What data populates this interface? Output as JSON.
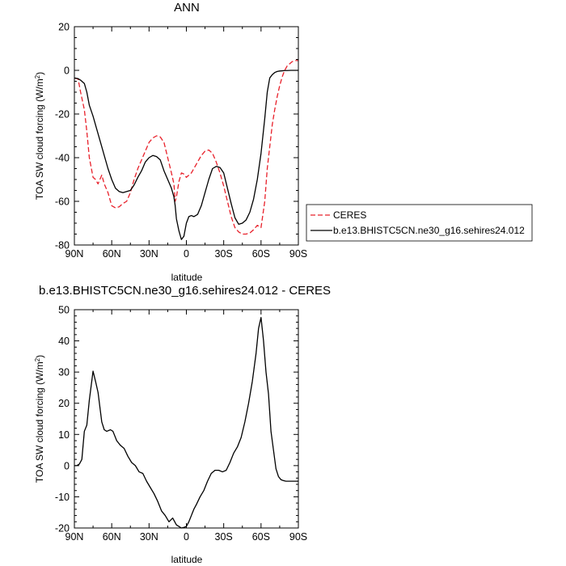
{
  "chart_data": [
    {
      "type": "line",
      "title": "ANN",
      "xlabel": "latitude",
      "ylabel": "TOA SW cloud forcing (W/m²)",
      "ylabel_main": "TOA SW cloud forcing (W/m",
      "ylabel_sup": "2",
      "ylabel_end": ")",
      "xlim": [
        90,
        -90
      ],
      "ylim": [
        -80,
        20
      ],
      "xticks": [
        90,
        60,
        30,
        0,
        -30,
        -60,
        -90
      ],
      "xtick_labels": [
        "90N",
        "60N",
        "30N",
        "0",
        "30S",
        "60S",
        "90S"
      ],
      "yticks": [
        -80,
        -60,
        -40,
        -20,
        0,
        20
      ],
      "ytick_labels": [
        "-80",
        "-60",
        "-40",
        "-20",
        "0",
        "20"
      ],
      "grid": false,
      "legend_position": "right",
      "series": [
        {
          "name": "CERES",
          "color": "#e8202a",
          "dash": "dashed",
          "x": [
            90,
            87,
            85,
            82,
            80,
            78,
            75,
            73,
            71,
            68,
            66,
            63,
            60,
            57,
            54,
            51,
            48,
            45,
            42,
            39,
            36,
            33,
            30,
            27,
            24,
            21,
            18,
            15,
            12,
            10,
            9,
            8,
            6,
            4,
            2,
            0,
            -2,
            -4,
            -6,
            -9,
            -12,
            -15,
            -18,
            -21,
            -24,
            -27,
            -30,
            -33,
            -36,
            -39,
            -42,
            -45,
            -48,
            -51,
            -54,
            -57,
            -60,
            -63,
            -65,
            -67,
            -69,
            -71,
            -73,
            -75,
            -77,
            -79,
            -81,
            -83,
            -85,
            -88,
            -90
          ],
          "y": [
            -3.5,
            -4,
            -10,
            -18,
            -28,
            -40,
            -49,
            -50,
            -52,
            -48,
            -52,
            -56,
            -62,
            -63,
            -62.5,
            -61,
            -60,
            -56,
            -50,
            -45,
            -41,
            -37,
            -33,
            -31,
            -30,
            -30.5,
            -33,
            -40,
            -47,
            -52,
            -60,
            -58,
            -51,
            -47,
            -47.5,
            -49,
            -48,
            -47,
            -45,
            -42,
            -39,
            -37,
            -36.5,
            -38,
            -42,
            -47,
            -53,
            -60,
            -67,
            -72,
            -74,
            -75,
            -75,
            -74.5,
            -73,
            -71,
            -72,
            -60,
            -45,
            -35,
            -25,
            -18,
            -12,
            -7,
            -3,
            0,
            2,
            3,
            4,
            4.5,
            4.5
          ]
        },
        {
          "name": "b.e13.BHISTC5CN.ne30_g16.sehires24.012",
          "color": "#000000",
          "dash": "solid",
          "x": [
            90,
            87,
            85,
            82,
            80,
            78,
            75,
            72,
            69,
            66,
            63,
            60,
            57,
            54,
            51,
            48,
            45,
            42,
            39,
            36,
            33,
            30,
            27,
            24,
            21,
            18,
            15,
            12,
            10,
            9,
            8,
            6,
            4,
            2,
            0,
            -2,
            -4,
            -6,
            -9,
            -12,
            -15,
            -18,
            -21,
            -24,
            -27,
            -30,
            -33,
            -36,
            -39,
            -42,
            -45,
            -48,
            -51,
            -54,
            -57,
            -60,
            -63,
            -65,
            -67,
            -69,
            -71,
            -73,
            -75,
            -77,
            -79,
            -81,
            -84,
            -87,
            -90
          ],
          "y": [
            -3.5,
            -3.8,
            -4.5,
            -6,
            -10,
            -16,
            -21,
            -27,
            -33,
            -39,
            -45,
            -50,
            -54,
            -55.5,
            -56,
            -55.5,
            -55,
            -52.5,
            -49,
            -46,
            -42,
            -40,
            -39,
            -39.5,
            -41,
            -46,
            -50,
            -54,
            -58,
            -62,
            -68,
            -73.5,
            -77.5,
            -76,
            -70,
            -67,
            -66.5,
            -67,
            -66,
            -62,
            -56,
            -50,
            -45,
            -44,
            -44.5,
            -47,
            -54,
            -61,
            -67.5,
            -70.5,
            -70,
            -68.5,
            -65,
            -59,
            -50,
            -38,
            -22,
            -10,
            -3.5,
            -2,
            -1,
            -0.5,
            -0.3,
            -0.2,
            -0.1,
            -0.1,
            0,
            0,
            0
          ]
        }
      ]
    },
    {
      "type": "line",
      "title": "b.e13.BHISTC5CN.ne30_g16.sehires24.012 - CERES",
      "xlabel": "latitude",
      "ylabel": "TOA SW cloud forcing (W/m²)",
      "ylabel_main": "TOA SW cloud forcing (W/m",
      "ylabel_sup": "2",
      "ylabel_end": ")",
      "xlim": [
        90,
        -90
      ],
      "ylim": [
        -20,
        50
      ],
      "xticks": [
        90,
        60,
        30,
        0,
        -30,
        -60,
        -90
      ],
      "xtick_labels": [
        "90N",
        "60N",
        "30N",
        "0",
        "30S",
        "60S",
        "90S"
      ],
      "yticks": [
        -20,
        -10,
        0,
        10,
        20,
        30,
        40,
        50
      ],
      "ytick_labels": [
        "-20",
        "-10",
        "0",
        "10",
        "20",
        "30",
        "40",
        "50"
      ],
      "grid": false,
      "series": [
        {
          "color": "#000000",
          "dash": "solid",
          "x": [
            90,
            88,
            86,
            84,
            82,
            80,
            78,
            75,
            73,
            71,
            68,
            66,
            64,
            61,
            59,
            56,
            53,
            50,
            47,
            44,
            41,
            38,
            35,
            32,
            29,
            26,
            23,
            20,
            17,
            14,
            11,
            8,
            6,
            4,
            2,
            0,
            -2,
            -4,
            -6,
            -8,
            -11,
            -14,
            -17,
            -20,
            -23,
            -26,
            -29,
            -32,
            -35,
            -38,
            -41,
            -44,
            -47,
            -50,
            -53,
            -56,
            -58,
            -60,
            -62,
            -64,
            -66,
            -67,
            -68,
            -70,
            -72,
            -74,
            -76,
            -78,
            -80,
            -82,
            -84,
            -86,
            -88,
            -90
          ],
          "y": [
            0,
            0,
            0.5,
            2,
            11,
            13,
            21,
            30.3,
            27,
            23.5,
            14,
            11.5,
            11,
            11.5,
            11,
            8,
            6.5,
            5.5,
            3,
            1,
            0,
            -2,
            -2.5,
            -5,
            -7,
            -9,
            -11.5,
            -14.5,
            -16,
            -18,
            -16.8,
            -19,
            -19.5,
            -20,
            -19.8,
            -19.5,
            -18,
            -16,
            -14,
            -12.5,
            -10,
            -8,
            -5,
            -2.5,
            -1.5,
            -1.5,
            -2,
            -1.5,
            1,
            4,
            6,
            9,
            14,
            20,
            27,
            36,
            44,
            47.5,
            40,
            30,
            23,
            17,
            11,
            5,
            -1,
            -3.5,
            -4.5,
            -4.8,
            -5,
            -5,
            -5,
            -5,
            -5,
            -5
          ]
        }
      ]
    }
  ]
}
